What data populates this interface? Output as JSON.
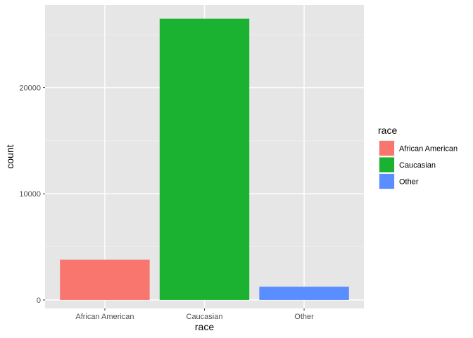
{
  "chart_data": {
    "type": "bar",
    "categories": [
      "African American",
      "Caucasian",
      "Other"
    ],
    "values": [
      3800,
      26500,
      1250
    ],
    "colors": [
      "#F8766D",
      "#1BB231",
      "#5A8DFF"
    ],
    "title": "",
    "xlabel": "race",
    "ylabel": "count",
    "ylim": [
      -800,
      27800
    ],
    "yticks": [
      0,
      10000,
      20000
    ],
    "ytick_labels": [
      "0",
      "10000",
      "20000"
    ],
    "grid": true,
    "panel_background": "#E6E6E6",
    "legend": {
      "title": "race",
      "position": "right",
      "entries": [
        "African American",
        "Caucasian",
        "Other"
      ]
    }
  }
}
